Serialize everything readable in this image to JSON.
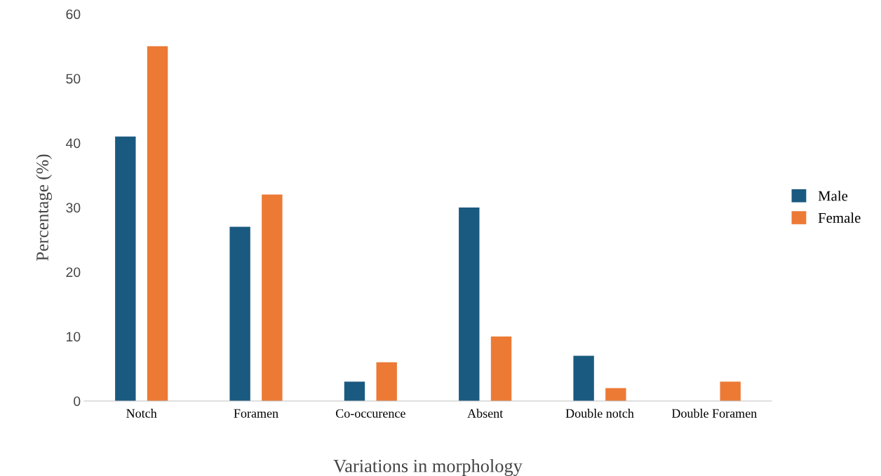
{
  "chart_data": {
    "type": "bar",
    "xlabel": "Variations in morphology",
    "ylabel": "Percentage (%)",
    "categories": [
      "Notch",
      "Foramen",
      "Co-occurence",
      "Absent",
      "Double notch",
      "Double Foramen"
    ],
    "series": [
      {
        "name": "Male",
        "color": "#1a5a80",
        "values": [
          41,
          27,
          3,
          30,
          7,
          0
        ]
      },
      {
        "name": "Female",
        "color": "#ec7a35",
        "values": [
          55,
          32,
          6,
          10,
          2,
          3
        ]
      }
    ],
    "ylim": [
      0,
      60
    ],
    "yticks": [
      0,
      10,
      20,
      30,
      40,
      50,
      60
    ],
    "grid": false,
    "legend": "right"
  }
}
